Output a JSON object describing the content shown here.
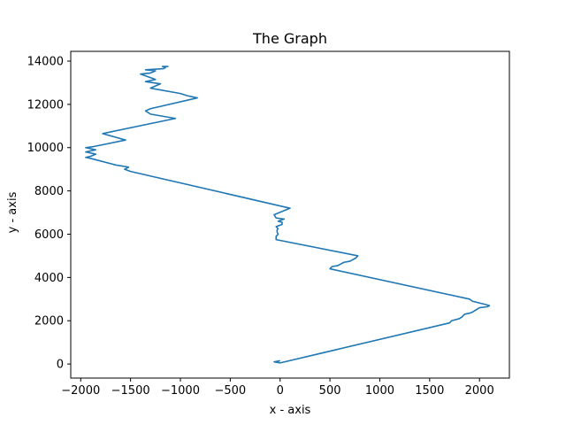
{
  "chart_data": {
    "type": "line",
    "title": "The Graph",
    "xlabel": "x - axis",
    "ylabel": "y - axis",
    "xlim": [
      -2100,
      2300
    ],
    "ylim": [
      -650,
      14450
    ],
    "xticks": [
      -2000,
      -1500,
      -1000,
      -500,
      0,
      500,
      1000,
      1500,
      2000
    ],
    "yticks": [
      0,
      2000,
      4000,
      6000,
      8000,
      10000,
      12000,
      14000
    ],
    "xtick_labels": [
      "−2000",
      "−1500",
      "−1000",
      "−500",
      "0",
      "500",
      "1000",
      "1500",
      "2000"
    ],
    "ytick_labels": [
      "0",
      "2000",
      "4000",
      "6000",
      "8000",
      "10000",
      "12000",
      "14000"
    ],
    "grid": false,
    "legend": "none",
    "line_color": "#1f77b4",
    "series": [
      {
        "x": [
          0,
          -60,
          0,
          1700,
          1720,
          1800,
          1830,
          1850,
          1900,
          1930,
          2000,
          2080,
          2100,
          2060,
          1930,
          1900,
          500,
          520,
          580,
          600,
          640,
          700,
          720,
          760,
          780,
          -40,
          -40,
          -20,
          -30,
          -30,
          -20,
          -40,
          20,
          20,
          -20,
          40,
          -40,
          -60,
          100,
          -1500,
          -1560,
          -1520,
          -1650,
          -1900,
          -1950,
          -1900,
          -1850,
          -1950,
          -1850,
          -1950,
          -1870,
          -1550,
          -1780,
          -1050,
          -1300,
          -1350,
          -1300,
          -830,
          -930,
          -1000,
          -1300,
          -1200,
          -1350,
          -1250,
          -1400,
          -1300,
          -1250,
          -1350,
          -1170,
          -1150,
          -1180,
          -1120
        ],
        "y": [
          150,
          100,
          50,
          1900,
          2000,
          2100,
          2200,
          2300,
          2350,
          2400,
          2600,
          2650,
          2700,
          2750,
          2900,
          3000,
          4400,
          4500,
          4550,
          4600,
          4700,
          4750,
          4800,
          4900,
          5000,
          5750,
          5900,
          6000,
          6100,
          6200,
          6250,
          6350,
          6450,
          6550,
          6600,
          6700,
          6750,
          6900,
          7200,
          8900,
          9000,
          9100,
          9200,
          9500,
          9550,
          9600,
          9700,
          9800,
          9900,
          10000,
          10050,
          10350,
          10650,
          11350,
          11550,
          11700,
          11800,
          12300,
          12400,
          12500,
          12750,
          12950,
          13050,
          13150,
          13400,
          13450,
          13550,
          13600,
          13650,
          13700,
          13750,
          13750
        ]
      }
    ]
  }
}
